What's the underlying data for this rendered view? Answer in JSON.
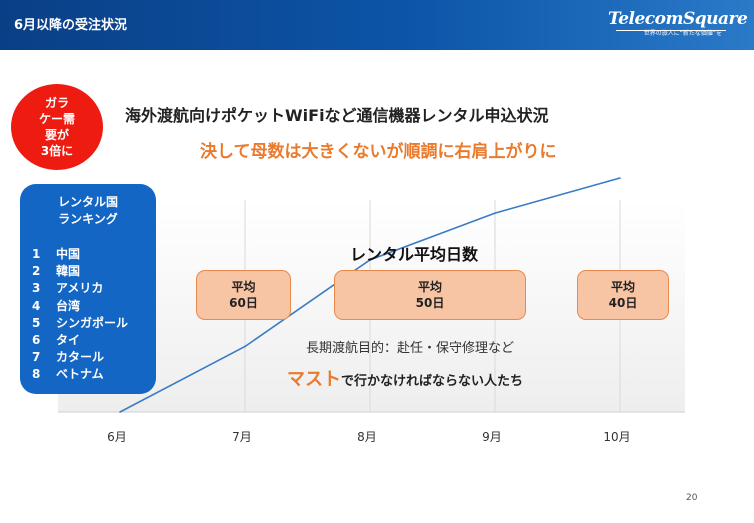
{
  "header": {
    "title": "6月以降の受注状況",
    "logo_main": "TelecomSquare",
    "logo_sub": "世界の旅人に“新たな価値”を"
  },
  "badge": {
    "text": "ガラ\nケー需\n要が\n3倍に",
    "color": "#ee1c10"
  },
  "heading": "海外渡航向けポケットWiFiなど通信機器レンタル申込状況",
  "subheading": "決して母数は大きくないが順調に右肩上がりに",
  "ranking": {
    "title": "レンタル国\nランキング",
    "items": [
      {
        "rank": "1",
        "country": "中国"
      },
      {
        "rank": "2",
        "country": "韓国"
      },
      {
        "rank": "3",
        "country": "アメリカ"
      },
      {
        "rank": "4",
        "country": "台湾"
      },
      {
        "rank": "5",
        "country": "シンガポール"
      },
      {
        "rank": "6",
        "country": "タイ"
      },
      {
        "rank": "7",
        "country": "カタール"
      },
      {
        "rank": "8",
        "country": "ベトナム"
      }
    ]
  },
  "chart_data": {
    "type": "line",
    "categories": [
      "6月",
      "7月",
      "8月",
      "9月",
      "10月"
    ],
    "values": [
      0,
      28,
      65,
      85,
      100
    ],
    "ylim": [
      0,
      100
    ],
    "line_color": "#3a7cc4",
    "grid": true
  },
  "avg": {
    "title": "レンタル平均日数",
    "boxes": [
      {
        "label": "平均",
        "value": "60日"
      },
      {
        "label": "平均",
        "value": "50日"
      },
      {
        "label": "平均",
        "value": "40日"
      }
    ]
  },
  "note": "長期渡航目的：赴任・保守修理など",
  "must": {
    "highlight": "マスト",
    "rest": "で行かなければならない人たち"
  },
  "page_number": "20"
}
